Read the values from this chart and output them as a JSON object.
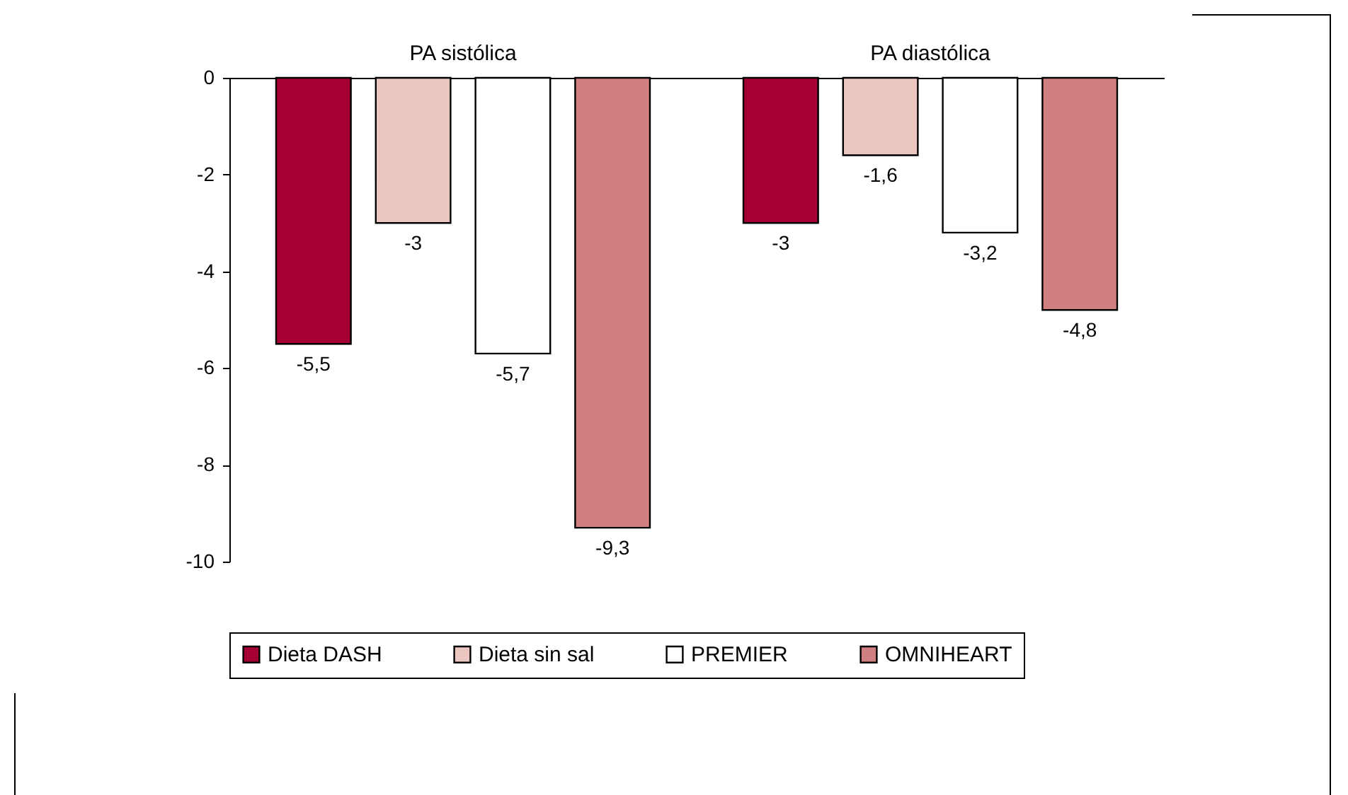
{
  "chart_data": {
    "type": "bar",
    "categories": [
      "PA sistólica",
      "PA diastólica"
    ],
    "series": [
      {
        "name": "Dieta DASH",
        "color": "#a50034",
        "values": [
          -5.5,
          -3
        ],
        "value_labels": [
          "-5,5",
          "-3"
        ]
      },
      {
        "name": "Dieta sin sal",
        "color": "#ecc6c0",
        "values": [
          -3,
          -1.6
        ],
        "value_labels": [
          "-3",
          "-1,6"
        ]
      },
      {
        "name": "PREMIER",
        "color": "#ffffff",
        "values": [
          -5.7,
          -3.2
        ],
        "value_labels": [
          "-5,7",
          "-3,2"
        ]
      },
      {
        "name": "OMNIHEART",
        "color": "#d08080",
        "values": [
          -9.3,
          -4.8
        ],
        "value_labels": [
          "-9,3",
          "-4,8"
        ]
      }
    ],
    "ylim": [
      -10,
      0
    ],
    "yticks": [
      -10,
      -8,
      -6,
      -4,
      -2,
      0
    ],
    "legend": "bottom",
    "grid": false
  }
}
